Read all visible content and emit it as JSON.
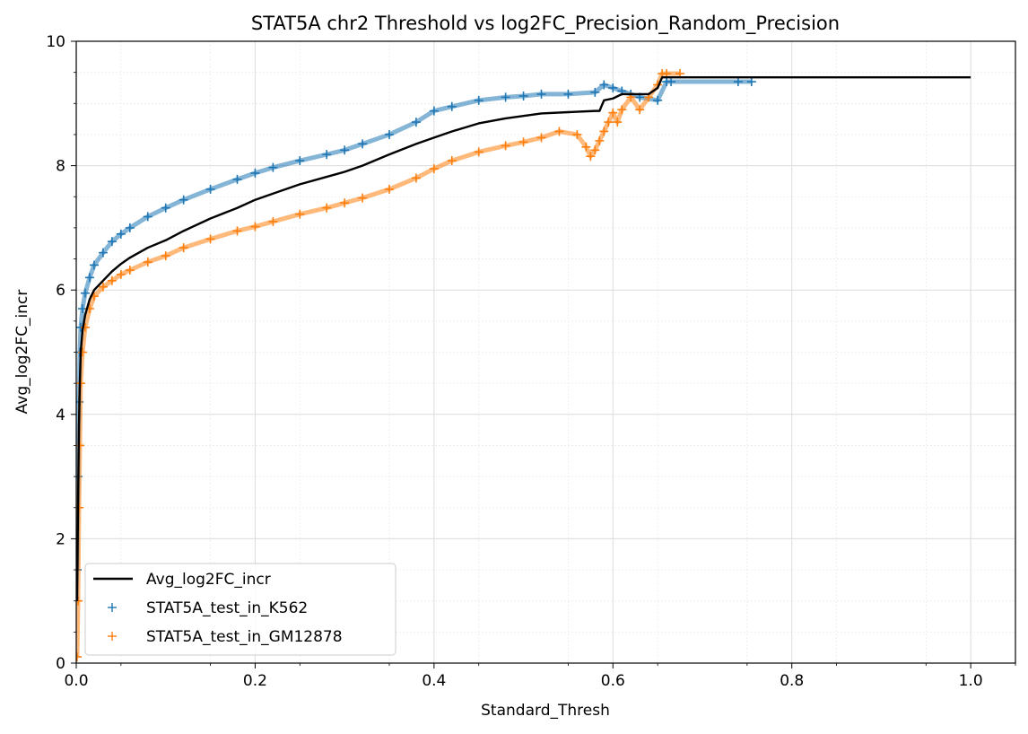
{
  "chart_data": {
    "type": "line",
    "title": "STAT5A chr2 Threshold vs log2FC_Precision_Random_Precision",
    "xlabel": "Standard_Thresh",
    "ylabel": "Avg_log2FC_incr",
    "xlim": [
      0,
      1.05
    ],
    "ylim": [
      0,
      10
    ],
    "x_ticks": [
      0.0,
      0.2,
      0.4,
      0.6,
      0.8,
      1.0
    ],
    "x_tick_labels": [
      "0.0",
      "0.2",
      "0.4",
      "0.6",
      "0.8",
      "1.0"
    ],
    "y_ticks": [
      0,
      2,
      4,
      6,
      8,
      10
    ],
    "y_tick_labels": [
      "0",
      "2",
      "4",
      "6",
      "8",
      "10"
    ],
    "grid": true,
    "minor_grid": true,
    "legend_position": "lower-left",
    "series": [
      {
        "name": "Avg_log2FC_incr",
        "kind": "line",
        "color": "#000000",
        "x": [
          0.001,
          0.002,
          0.003,
          0.004,
          0.005,
          0.007,
          0.01,
          0.015,
          0.02,
          0.03,
          0.04,
          0.05,
          0.06,
          0.08,
          0.1,
          0.12,
          0.15,
          0.18,
          0.2,
          0.22,
          0.25,
          0.28,
          0.3,
          0.32,
          0.35,
          0.38,
          0.4,
          0.42,
          0.45,
          0.48,
          0.5,
          0.52,
          0.55,
          0.58,
          0.585,
          0.59,
          0.6,
          0.61,
          0.63,
          0.64,
          0.65,
          0.655,
          0.66,
          0.7,
          0.8,
          0.9,
          1.0
        ],
        "y": [
          1.0,
          2.5,
          3.8,
          4.5,
          5.0,
          5.35,
          5.6,
          5.85,
          6.0,
          6.15,
          6.3,
          6.42,
          6.52,
          6.68,
          6.8,
          6.95,
          7.15,
          7.32,
          7.45,
          7.55,
          7.7,
          7.82,
          7.9,
          8.0,
          8.18,
          8.35,
          8.45,
          8.55,
          8.68,
          8.76,
          8.8,
          8.84,
          8.86,
          8.88,
          8.88,
          9.05,
          9.08,
          9.15,
          9.15,
          9.15,
          9.25,
          9.42,
          9.42,
          9.42,
          9.42,
          9.42,
          9.42
        ]
      },
      {
        "name": "STAT5A_test_in_K562",
        "kind": "scatter",
        "marker": "+",
        "color": "#1f77b4",
        "x": [
          0.001,
          0.002,
          0.003,
          0.004,
          0.005,
          0.007,
          0.01,
          0.015,
          0.02,
          0.03,
          0.04,
          0.05,
          0.06,
          0.08,
          0.1,
          0.12,
          0.15,
          0.18,
          0.2,
          0.22,
          0.25,
          0.28,
          0.3,
          0.32,
          0.35,
          0.38,
          0.4,
          0.42,
          0.45,
          0.48,
          0.5,
          0.52,
          0.55,
          0.58,
          0.59,
          0.6,
          0.61,
          0.62,
          0.63,
          0.65,
          0.66,
          0.665,
          0.74,
          0.755
        ],
        "y": [
          1.5,
          3.0,
          4.2,
          5.0,
          5.4,
          5.7,
          5.95,
          6.2,
          6.4,
          6.6,
          6.78,
          6.9,
          7.0,
          7.18,
          7.32,
          7.45,
          7.62,
          7.78,
          7.88,
          7.97,
          8.08,
          8.18,
          8.25,
          8.35,
          8.5,
          8.7,
          8.88,
          8.95,
          9.05,
          9.1,
          9.12,
          9.15,
          9.15,
          9.18,
          9.3,
          9.25,
          9.2,
          9.15,
          9.1,
          9.05,
          9.35,
          9.35,
          9.35,
          9.35
        ]
      },
      {
        "name": "STAT5A_test_in_GM12878",
        "kind": "scatter",
        "marker": "+",
        "color": "#ff7f0e",
        "x": [
          0.001,
          0.002,
          0.003,
          0.004,
          0.005,
          0.007,
          0.01,
          0.015,
          0.02,
          0.03,
          0.04,
          0.05,
          0.06,
          0.08,
          0.1,
          0.12,
          0.15,
          0.18,
          0.2,
          0.22,
          0.25,
          0.28,
          0.3,
          0.32,
          0.35,
          0.38,
          0.4,
          0.42,
          0.45,
          0.48,
          0.5,
          0.52,
          0.54,
          0.56,
          0.57,
          0.575,
          0.58,
          0.585,
          0.59,
          0.595,
          0.6,
          0.605,
          0.61,
          0.62,
          0.63,
          0.64,
          0.65,
          0.655,
          0.66,
          0.675
        ],
        "y": [
          0.1,
          1.0,
          2.5,
          3.5,
          4.5,
          5.0,
          5.4,
          5.7,
          5.9,
          6.05,
          6.15,
          6.25,
          6.32,
          6.45,
          6.55,
          6.68,
          6.82,
          6.95,
          7.02,
          7.1,
          7.22,
          7.32,
          7.4,
          7.48,
          7.62,
          7.8,
          7.95,
          8.08,
          8.22,
          8.32,
          8.38,
          8.45,
          8.55,
          8.5,
          8.3,
          8.15,
          8.25,
          8.4,
          8.55,
          8.7,
          8.85,
          8.7,
          8.9,
          9.1,
          8.9,
          9.1,
          9.3,
          9.48,
          9.48,
          9.48
        ]
      }
    ]
  }
}
